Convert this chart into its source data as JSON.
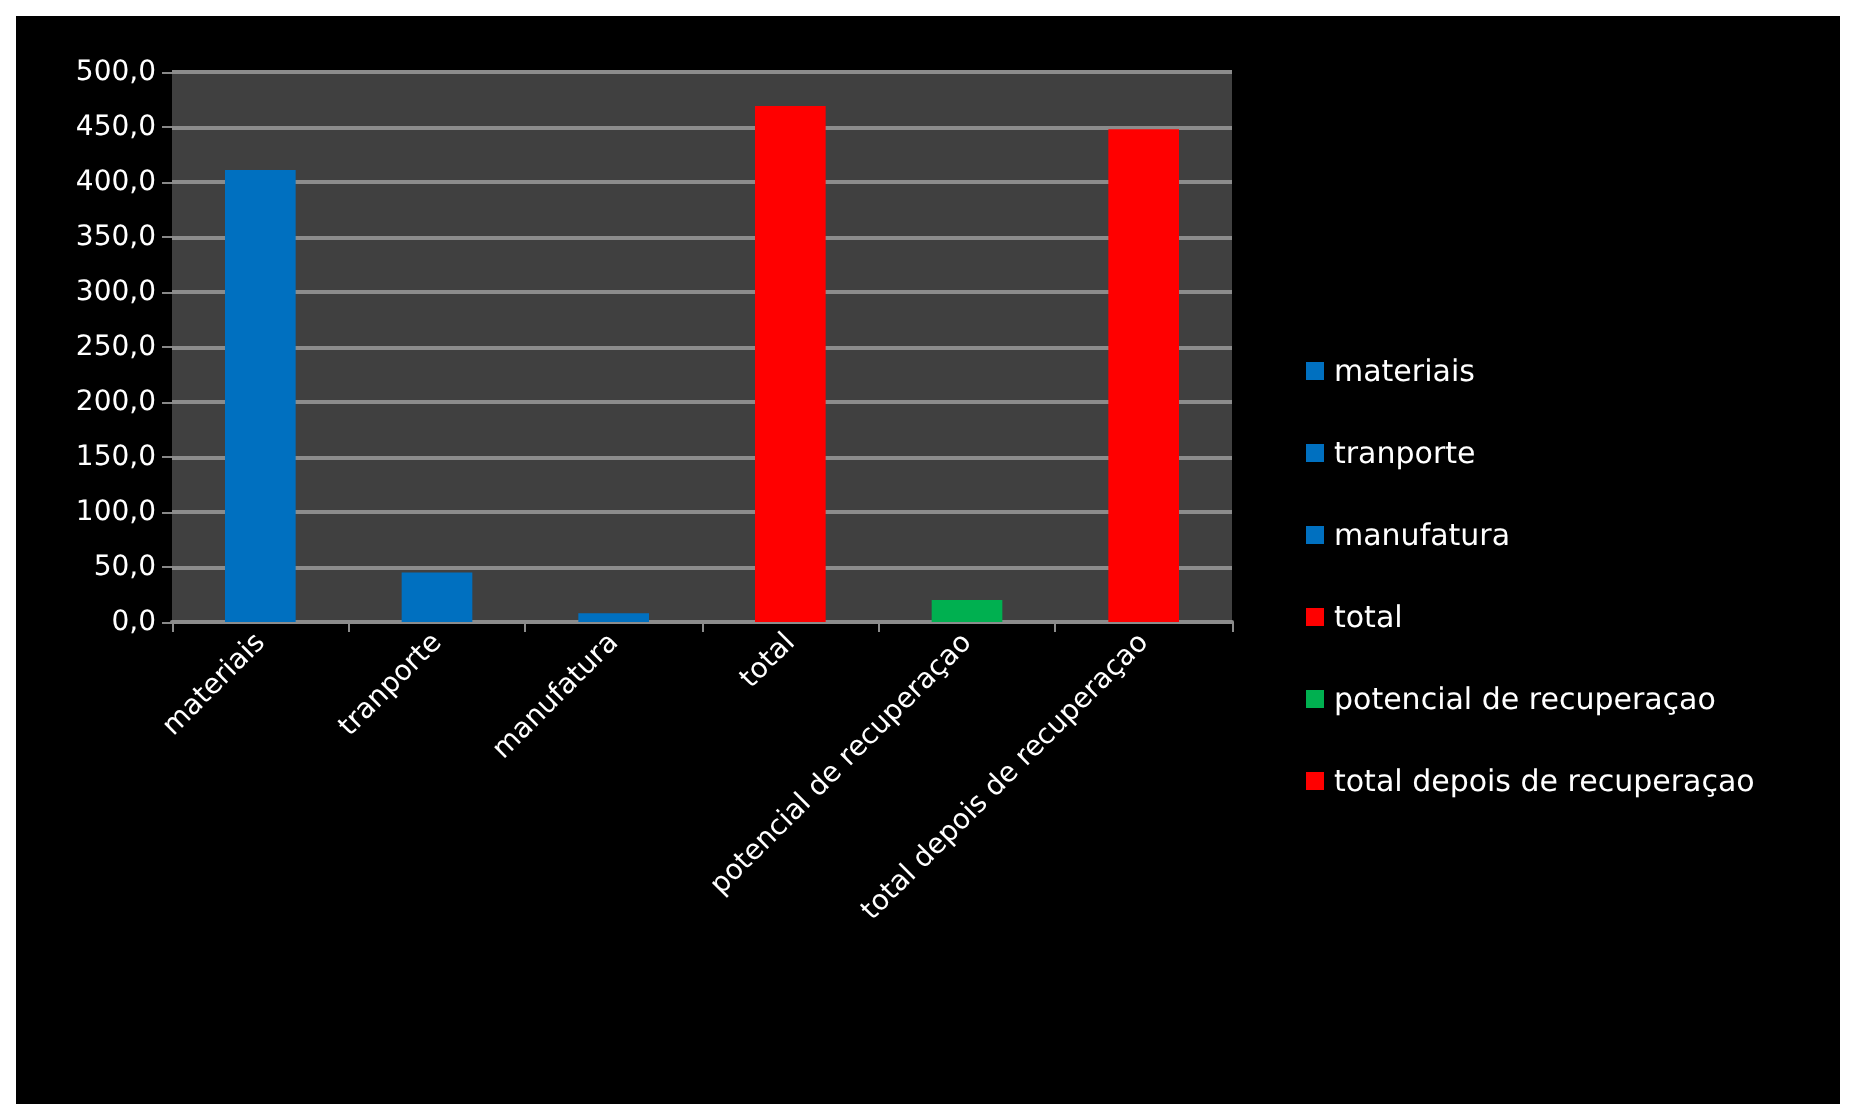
{
  "chart_data": {
    "type": "bar",
    "stacked": true,
    "categories": [
      "materiais",
      "tranporte",
      "manufatura",
      "total",
      "potencial de recuperaçao",
      "total depois de recuperaçao"
    ],
    "series": [
      {
        "name": "materiais",
        "color": "#0070c0",
        "values": [
          411,
          null,
          null,
          null,
          null,
          null
        ]
      },
      {
        "name": "tranporte",
        "color": "#0070c0",
        "values": [
          null,
          45,
          null,
          null,
          null,
          null
        ]
      },
      {
        "name": "manufatura",
        "color": "#0070c0",
        "values": [
          null,
          null,
          8,
          null,
          null,
          null
        ]
      },
      {
        "name": "total",
        "color": "#ff0000",
        "values": [
          null,
          null,
          null,
          469,
          null,
          null
        ]
      },
      {
        "name": "potencial de recuperaçao",
        "color": "#00b050",
        "values": [
          null,
          null,
          null,
          null,
          20,
          null
        ]
      },
      {
        "name": "total depois de recuperaçao",
        "color": "#ff0000",
        "values": [
          null,
          null,
          null,
          null,
          null,
          448
        ]
      }
    ],
    "ylim": [
      0,
      500
    ],
    "yticks": [
      {
        "value": 0,
        "label": "0,0"
      },
      {
        "value": 50,
        "label": "50,0"
      },
      {
        "value": 100,
        "label": "100,0"
      },
      {
        "value": 150,
        "label": "150,0"
      },
      {
        "value": 200,
        "label": "200,0"
      },
      {
        "value": 250,
        "label": "250,0"
      },
      {
        "value": 300,
        "label": "300,0"
      },
      {
        "value": 350,
        "label": "350,0"
      },
      {
        "value": 400,
        "label": "400,0"
      },
      {
        "value": 450,
        "label": "450,0"
      },
      {
        "value": 500,
        "label": "500,0"
      }
    ],
    "grid": "y",
    "legend": "right"
  }
}
